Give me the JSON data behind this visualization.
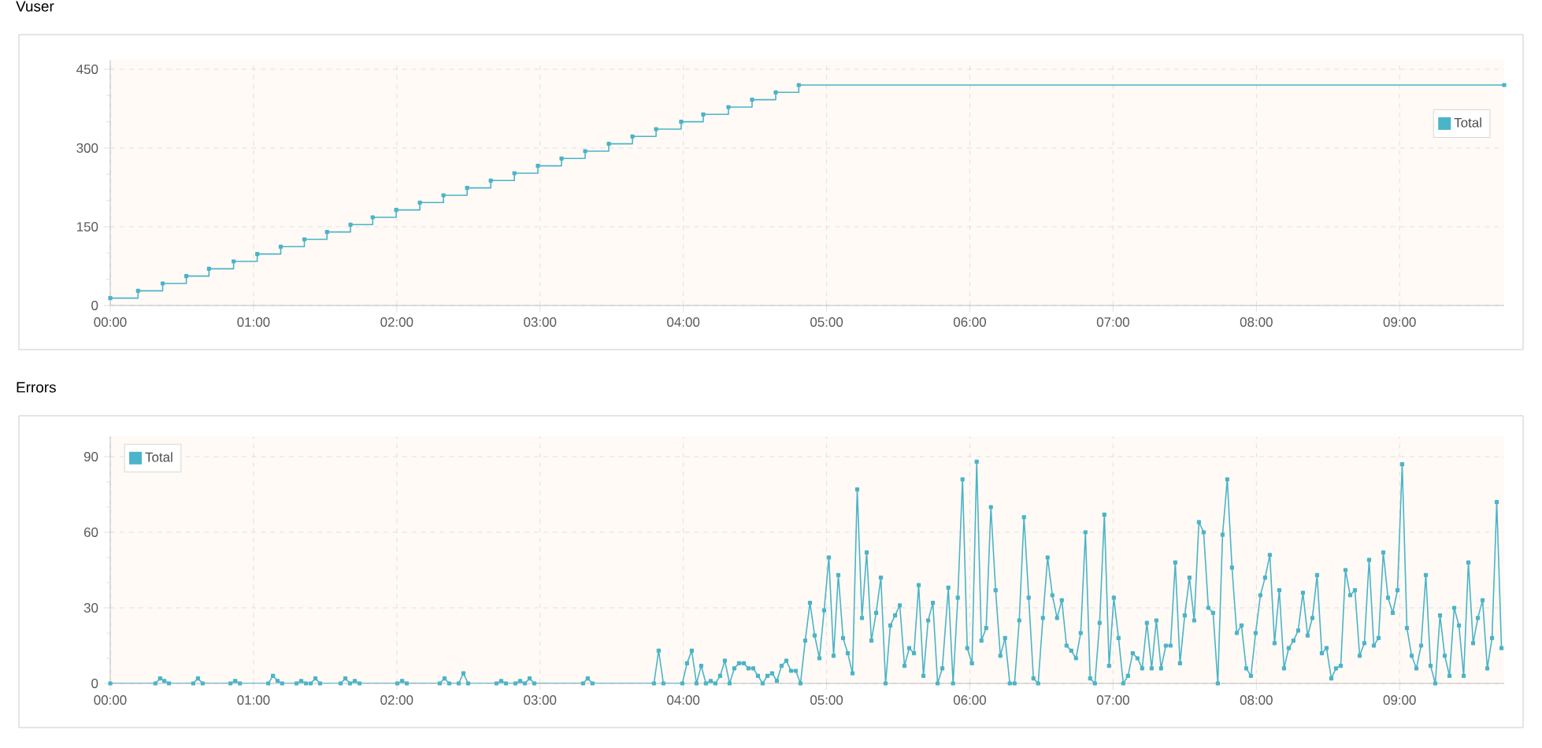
{
  "chart_data": [
    {
      "type": "step",
      "title": "Vuser",
      "x": [
        0,
        0.194,
        0.366,
        0.531,
        0.689,
        0.861,
        1.026,
        1.19,
        1.355,
        1.513,
        1.677,
        1.832,
        1.996,
        2.161,
        2.326,
        2.491,
        2.656,
        2.821,
        2.985,
        3.15,
        3.315,
        3.48,
        3.645,
        3.81,
        3.985,
        4.139,
        4.315,
        4.48,
        4.645,
        4.806,
        9.73
      ],
      "series": [
        {
          "name": "Total",
          "color": "#4bb4c8",
          "values": [
            14,
            28,
            42,
            56,
            70,
            84,
            98,
            112,
            126,
            140,
            154,
            168,
            182,
            196,
            210,
            224,
            238,
            252,
            266,
            280,
            294,
            308,
            322,
            336,
            350,
            364,
            378,
            392,
            406,
            420,
            420
          ]
        }
      ],
      "xlim": [
        0,
        9.73
      ],
      "ylim": [
        0,
        467
      ],
      "xticks": [
        {
          "value": 0,
          "label": "00:00"
        },
        {
          "value": 1,
          "label": "01:00"
        },
        {
          "value": 2,
          "label": "02:00"
        },
        {
          "value": 3,
          "label": "03:00"
        },
        {
          "value": 4,
          "label": "04:00"
        },
        {
          "value": 5,
          "label": "05:00"
        },
        {
          "value": 6,
          "label": "06:00"
        },
        {
          "value": 7,
          "label": "07:00"
        },
        {
          "value": 8,
          "label": "08:00"
        },
        {
          "value": 9,
          "label": "09:00"
        }
      ],
      "yticks": [
        0,
        150,
        300,
        450
      ],
      "grid": true,
      "legend": "top right",
      "marker": "square"
    },
    {
      "type": "line",
      "title": "Errors",
      "x": [
        0,
        0.315,
        0.348,
        0.377,
        0.41,
        0.579,
        0.612,
        0.645,
        0.839,
        0.872,
        0.905,
        1.103,
        1.136,
        1.168,
        1.2,
        1.3,
        1.333,
        1.366,
        1.399,
        1.432,
        1.465,
        1.608,
        1.641,
        1.674,
        1.707,
        1.74,
        2.004,
        2.037,
        2.07,
        2.3,
        2.333,
        2.366,
        2.432,
        2.465,
        2.498,
        2.696,
        2.729,
        2.762,
        2.828,
        2.861,
        2.894,
        2.927,
        2.96,
        3.3,
        3.333,
        3.366,
        3.795,
        3.828,
        3.861,
        3.993,
        4.026,
        4.059,
        4.092,
        4.125,
        4.158,
        4.191,
        4.224,
        4.257,
        4.29,
        4.323,
        4.356,
        4.389,
        4.422,
        4.455,
        4.488,
        4.521,
        4.554,
        4.587,
        4.62,
        4.653,
        4.686,
        4.719,
        4.752,
        4.785,
        4.818,
        4.851,
        4.884,
        4.917,
        4.95,
        4.983,
        5.016,
        5.049,
        5.082,
        5.115,
        5.148,
        5.181,
        5.214,
        5.247,
        5.28,
        5.313,
        5.346,
        5.379,
        5.412,
        5.445,
        5.478,
        5.511,
        5.544,
        5.577,
        5.61,
        5.643,
        5.676,
        5.709,
        5.742,
        5.775,
        5.808,
        5.85,
        5.883,
        5.916,
        5.949,
        5.982,
        6.015,
        6.048,
        6.081,
        6.114,
        6.147,
        6.18,
        6.213,
        6.246,
        6.279,
        6.312,
        6.345,
        6.378,
        6.411,
        6.444,
        6.477,
        6.51,
        6.543,
        6.576,
        6.609,
        6.642,
        6.675,
        6.708,
        6.741,
        6.774,
        6.807,
        6.84,
        6.873,
        6.906,
        6.939,
        6.972,
        7.005,
        7.038,
        7.071,
        7.104,
        7.137,
        7.17,
        7.203,
        7.236,
        7.269,
        7.302,
        7.335,
        7.368,
        7.401,
        7.434,
        7.467,
        7.5,
        7.533,
        7.566,
        7.599,
        7.632,
        7.665,
        7.698,
        7.731,
        7.764,
        7.797,
        7.83,
        7.863,
        7.896,
        7.929,
        7.962,
        7.995,
        8.028,
        8.061,
        8.094,
        8.127,
        8.16,
        8.193,
        8.226,
        8.259,
        8.292,
        8.325,
        8.358,
        8.391,
        8.424,
        8.457,
        8.49,
        8.523,
        8.556,
        8.589,
        8.622,
        8.655,
        8.688,
        8.721,
        8.754,
        8.787,
        8.82,
        8.853,
        8.886,
        8.919,
        8.952,
        8.985,
        9.018,
        9.051,
        9.084,
        9.117,
        9.15,
        9.183,
        9.216,
        9.249,
        9.282,
        9.315,
        9.348,
        9.381,
        9.414,
        9.447,
        9.48,
        9.513,
        9.546,
        9.579,
        9.612,
        9.645,
        9.678,
        9.711
      ],
      "series": [
        {
          "name": "Total",
          "color": "#4bb4c8",
          "values": [
            0,
            0,
            2,
            1,
            0,
            0,
            2,
            0,
            0,
            1,
            0,
            0,
            3,
            1,
            0,
            0,
            1,
            0,
            0,
            2,
            0,
            0,
            2,
            0,
            1,
            0,
            0,
            1,
            0,
            0,
            2,
            0,
            0,
            4,
            0,
            0,
            1,
            0,
            0,
            1,
            0,
            2,
            0,
            0,
            2,
            0,
            0,
            13,
            0,
            0,
            8,
            13,
            0,
            7,
            0,
            1,
            0,
            3,
            9,
            0,
            6,
            8,
            8,
            6,
            6,
            3,
            0,
            3,
            4,
            1,
            7,
            9,
            5,
            5,
            0,
            17,
            32,
            19,
            10,
            29,
            50,
            11,
            43,
            18,
            12,
            4,
            77,
            26,
            52,
            17,
            28,
            42,
            0,
            23,
            27,
            31,
            7,
            14,
            12,
            39,
            3,
            25,
            32,
            0,
            6,
            38,
            0,
            34,
            81,
            14,
            8,
            88,
            17,
            22,
            70,
            37,
            11,
            18,
            0,
            0,
            25,
            66,
            34,
            2,
            0,
            26,
            50,
            35,
            26,
            33,
            15,
            13,
            10,
            20,
            60,
            2,
            0,
            24,
            67,
            7,
            34,
            18,
            0,
            3,
            12,
            10,
            6,
            24,
            6,
            25,
            6,
            15,
            15,
            48,
            8,
            27,
            42,
            25,
            64,
            60,
            30,
            28,
            0,
            59,
            81,
            46,
            20,
            23,
            6,
            3,
            20,
            35,
            42,
            51,
            16,
            37,
            6,
            14,
            17,
            21,
            36,
            19,
            26,
            43,
            12,
            14,
            2,
            6,
            7,
            45,
            35,
            37,
            11,
            16,
            49,
            15,
            18,
            52,
            34,
            28,
            37,
            87,
            22,
            11,
            6,
            15,
            43,
            7,
            0,
            27,
            11,
            3,
            30,
            23,
            3,
            48,
            16,
            26,
            33,
            6,
            18,
            72,
            14
          ]
        }
      ],
      "xlim": [
        0,
        9.73
      ],
      "ylim": [
        0,
        98
      ],
      "xticks": [
        {
          "value": 0,
          "label": "00:00"
        },
        {
          "value": 1,
          "label": "01:00"
        },
        {
          "value": 2,
          "label": "02:00"
        },
        {
          "value": 3,
          "label": "03:00"
        },
        {
          "value": 4,
          "label": "04:00"
        },
        {
          "value": 5,
          "label": "05:00"
        },
        {
          "value": 6,
          "label": "06:00"
        },
        {
          "value": 7,
          "label": "07:00"
        },
        {
          "value": 8,
          "label": "08:00"
        },
        {
          "value": 9,
          "label": "09:00"
        }
      ],
      "yticks": [
        0,
        30,
        60,
        90
      ],
      "grid": true,
      "legend": "top left",
      "marker": "square"
    }
  ]
}
